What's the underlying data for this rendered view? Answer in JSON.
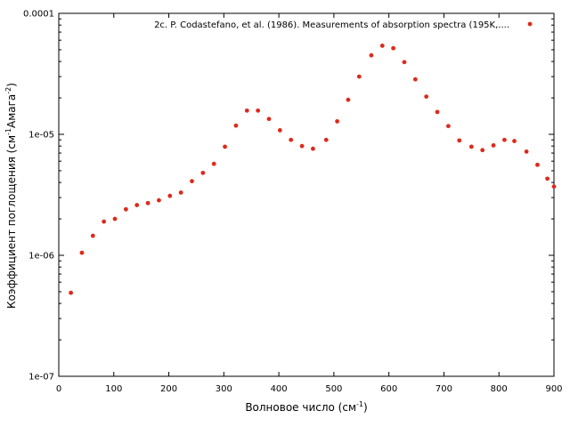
{
  "chart_data": {
    "type": "scatter",
    "xlabel": "Волновое число (см",
    "xlabel_sup": "-1",
    "xlabel_end": ")",
    "ylabel": "Коэффициент поглощения (см",
    "ylabel_sup1": "-1",
    "ylabel_mid": "Амага",
    "ylabel_sup2": "-2",
    "ylabel_end": ")",
    "xlim": [
      0,
      900
    ],
    "ylim": [
      1e-07,
      0.0001
    ],
    "y_scale": "log",
    "x_ticks": [
      0,
      100,
      200,
      300,
      400,
      500,
      600,
      700,
      800,
      900
    ],
    "x_tick_labels": [
      "0",
      "100",
      "200",
      "300",
      "400",
      "500",
      "600",
      "700",
      "800",
      "900"
    ],
    "y_ticks": [
      1e-07,
      1e-06,
      1e-05,
      0.0001
    ],
    "y_tick_labels": [
      "1e-07",
      "1e-06",
      "1e-05",
      "0.0001"
    ],
    "legend_position": "top-right",
    "series": [
      {
        "name": "2c. P. Codastefano, et al. (1986). Measurements of absorption spectra (195K,....",
        "color": "#dd2a1b",
        "x": [
          22,
          42,
          62,
          82,
          102,
          122,
          142,
          162,
          182,
          202,
          222,
          242,
          262,
          282,
          302,
          322,
          342,
          362,
          382,
          402,
          422,
          442,
          462,
          486,
          506,
          526,
          546,
          568,
          588,
          608,
          628,
          648,
          668,
          688,
          708,
          728,
          750,
          770,
          790,
          810,
          828,
          850,
          870,
          888,
          900
        ],
        "y": [
          4.9e-07,
          1.05e-06,
          1.45e-06,
          1.9e-06,
          2e-06,
          2.4e-06,
          2.6e-06,
          2.7e-06,
          2.85e-06,
          3.1e-06,
          3.3e-06,
          4.1e-06,
          4.8e-06,
          5.7e-06,
          7.9e-06,
          1.18e-05,
          1.57e-05,
          1.57e-05,
          1.34e-05,
          1.08e-05,
          9e-06,
          8e-06,
          7.6e-06,
          9e-06,
          1.28e-05,
          1.93e-05,
          3e-05,
          4.5e-05,
          5.4e-05,
          5.15e-05,
          3.95e-05,
          2.85e-05,
          2.05e-05,
          1.53e-05,
          1.17e-05,
          8.9e-06,
          7.9e-06,
          7.4e-06,
          8.1e-06,
          9e-06,
          8.8e-06,
          7.2e-06,
          5.6e-06,
          4.3e-06,
          3.7e-06
        ]
      }
    ]
  }
}
